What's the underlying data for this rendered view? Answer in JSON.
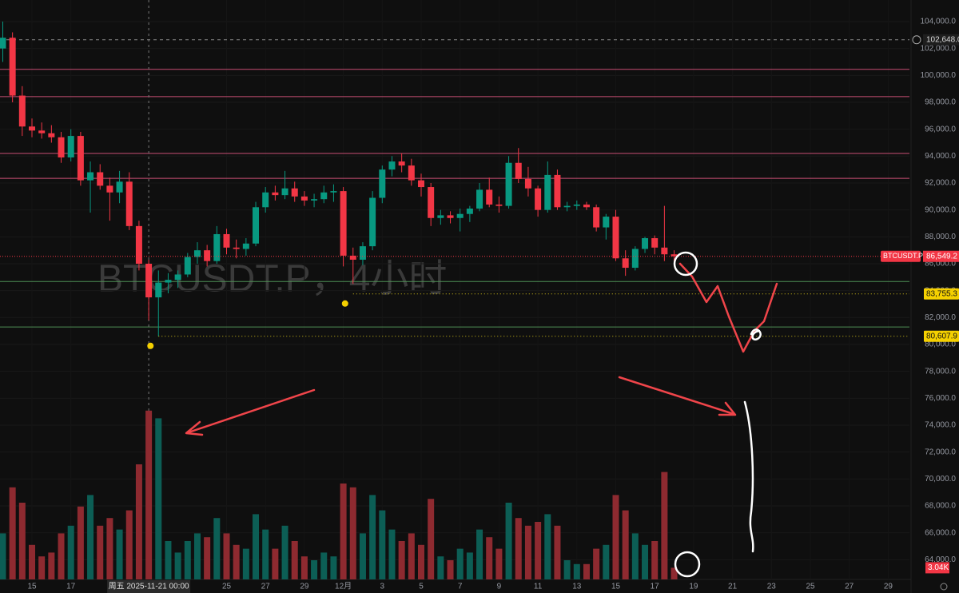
{
  "chart_data": {
    "type": "candlestick",
    "watermark": "BTCUSDT.P，4小时",
    "up_color": "#089981",
    "down_color": "#f23645",
    "up_volume_color": "#0c5e55",
    "down_volume_color": "#8e2a30",
    "grid": true,
    "ylim": [
      62534,
      105604
    ],
    "vlim": [
      0,
      50
    ],
    "yticks": [
      {
        "value": 64000,
        "label": "64,000.0"
      },
      {
        "value": 66000,
        "label": "66,000.0"
      },
      {
        "value": 68000,
        "label": "68,000.0"
      },
      {
        "value": 70000,
        "label": "70,000.0"
      },
      {
        "value": 72000,
        "label": "72,000.0"
      },
      {
        "value": 74000,
        "label": "74,000.0"
      },
      {
        "value": 76000,
        "label": "76,000.0"
      },
      {
        "value": 78000,
        "label": "78,000.0"
      },
      {
        "value": 80000,
        "label": "80,000.0"
      },
      {
        "value": 82000,
        "label": "82,000.0"
      },
      {
        "value": 84000,
        "label": "84,000.0"
      },
      {
        "value": 86000,
        "label": "86,000.0"
      },
      {
        "value": 88000,
        "label": "88,000.0"
      },
      {
        "value": 90000,
        "label": "90,000.0"
      },
      {
        "value": 92000,
        "label": "92,000.0"
      },
      {
        "value": 94000,
        "label": "94,000.0"
      },
      {
        "value": 96000,
        "label": "96,000.0"
      },
      {
        "value": 98000,
        "label": "98,000.0"
      },
      {
        "value": 100000,
        "label": "100,000.0"
      },
      {
        "value": 102000,
        "label": "102,000.0"
      },
      {
        "value": 104000,
        "label": "104,000.0"
      }
    ],
    "xticks": [
      {
        "value": "2025-11-15",
        "label": "15"
      },
      {
        "value": "2025-11-17",
        "label": "17"
      },
      {
        "value": "2025-11-25",
        "label": "25"
      },
      {
        "value": "2025-11-27",
        "label": "27"
      },
      {
        "value": "2025-11-29",
        "label": "29"
      },
      {
        "value": "2025-12-01",
        "label": "12月"
      },
      {
        "value": "2025-12-03",
        "label": "3"
      },
      {
        "value": "2025-12-05",
        "label": "5"
      },
      {
        "value": "2025-12-07",
        "label": "7"
      },
      {
        "value": "2025-12-09",
        "label": "9"
      },
      {
        "value": "2025-12-11",
        "label": "11"
      },
      {
        "value": "2025-12-13",
        "label": "13"
      },
      {
        "value": "2025-12-15",
        "label": "15"
      },
      {
        "value": "2025-12-17",
        "label": "17"
      },
      {
        "value": "2025-12-19",
        "label": "19"
      },
      {
        "value": "2025-12-21",
        "label": "21"
      },
      {
        "value": "2025-12-23",
        "label": "23"
      },
      {
        "value": "2025-12-25",
        "label": "25"
      },
      {
        "value": "2025-12-27",
        "label": "27"
      },
      {
        "value": "2025-12-29",
        "label": "29"
      }
    ],
    "crosshair": {
      "x": "2025-11-21 00:00",
      "label": "周五 2025-11-21 00:00"
    },
    "levels": [
      {
        "value": 100450,
        "color": "#c94f75"
      },
      {
        "value": 98420,
        "color": "#c94f75"
      },
      {
        "value": 94200,
        "color": "#c94f75"
      },
      {
        "value": 92350,
        "color": "#c94f75"
      },
      {
        "value": 84680,
        "color": "#4f8f55"
      },
      {
        "value": 81300,
        "color": "#4f8f55"
      }
    ],
    "marks": [
      {
        "value": 83755.3,
        "label": "83,755.3",
        "from": "2025-12-01 12:00"
      },
      {
        "value": 80607.9,
        "label": "80,607.9",
        "from": "2025-11-21 12:00"
      }
    ],
    "high_line": {
      "value": 102648,
      "label": "102,648.0"
    },
    "last_price": {
      "name": "BTCUSDT.P",
      "value": 86549.2,
      "label": "86,549.2"
    },
    "last_volume": {
      "value": 3.04,
      "label": "3.04K"
    },
    "candles": [
      {
        "x": "2025-11-13 12:00",
        "o": 102000,
        "h": 104000,
        "l": 101000,
        "c": 102800,
        "v": 12
      },
      {
        "x": "2025-11-14 00:00",
        "o": 102800,
        "h": 103200,
        "l": 98000,
        "c": 98500,
        "v": 24
      },
      {
        "x": "2025-11-14 12:00",
        "o": 98500,
        "h": 99200,
        "l": 95500,
        "c": 96200,
        "v": 20
      },
      {
        "x": "2025-11-15 00:00",
        "o": 96200,
        "h": 96800,
        "l": 95400,
        "c": 95900,
        "v": 9
      },
      {
        "x": "2025-11-15 12:00",
        "o": 95900,
        "h": 96500,
        "l": 95300,
        "c": 95700,
        "v": 6
      },
      {
        "x": "2025-11-16 00:00",
        "o": 95700,
        "h": 96300,
        "l": 95000,
        "c": 95400,
        "v": 7
      },
      {
        "x": "2025-11-16 12:00",
        "o": 95400,
        "h": 95800,
        "l": 93500,
        "c": 93900,
        "v": 12
      },
      {
        "x": "2025-11-17 00:00",
        "o": 93900,
        "h": 96000,
        "l": 93600,
        "c": 95500,
        "v": 14
      },
      {
        "x": "2025-11-17 12:00",
        "o": 95500,
        "h": 95800,
        "l": 91800,
        "c": 92200,
        "v": 19
      },
      {
        "x": "2025-11-18 00:00",
        "o": 92200,
        "h": 93600,
        "l": 89800,
        "c": 92800,
        "v": 22
      },
      {
        "x": "2025-11-18 12:00",
        "o": 92800,
        "h": 93400,
        "l": 91500,
        "c": 91800,
        "v": 14
      },
      {
        "x": "2025-11-19 00:00",
        "o": 91800,
        "h": 92400,
        "l": 89200,
        "c": 91300,
        "v": 16
      },
      {
        "x": "2025-11-19 12:00",
        "o": 91300,
        "h": 92900,
        "l": 90500,
        "c": 92100,
        "v": 13
      },
      {
        "x": "2025-11-20 00:00",
        "o": 92100,
        "h": 92800,
        "l": 88500,
        "c": 88800,
        "v": 18
      },
      {
        "x": "2025-11-20 12:00",
        "o": 88800,
        "h": 89200,
        "l": 85500,
        "c": 86000,
        "v": 30
      },
      {
        "x": "2025-11-21 00:00",
        "o": 86000,
        "h": 86300,
        "l": 81800,
        "c": 83500,
        "v": 44
      },
      {
        "x": "2025-11-21 12:00",
        "o": 83500,
        "h": 85500,
        "l": 80600,
        "c": 84600,
        "v": 42
      },
      {
        "x": "2025-11-22 00:00",
        "o": 84600,
        "h": 85300,
        "l": 83800,
        "c": 84800,
        "v": 10
      },
      {
        "x": "2025-11-22 12:00",
        "o": 84800,
        "h": 85500,
        "l": 84200,
        "c": 85200,
        "v": 7
      },
      {
        "x": "2025-11-23 00:00",
        "o": 85200,
        "h": 86800,
        "l": 85000,
        "c": 86500,
        "v": 10
      },
      {
        "x": "2025-11-23 12:00",
        "o": 86500,
        "h": 87600,
        "l": 86000,
        "c": 87000,
        "v": 12
      },
      {
        "x": "2025-11-24 00:00",
        "o": 87000,
        "h": 87400,
        "l": 85800,
        "c": 86200,
        "v": 11
      },
      {
        "x": "2025-11-24 12:00",
        "o": 86200,
        "h": 88800,
        "l": 86000,
        "c": 88200,
        "v": 16
      },
      {
        "x": "2025-11-25 00:00",
        "o": 88200,
        "h": 88600,
        "l": 86700,
        "c": 87200,
        "v": 12
      },
      {
        "x": "2025-11-25 12:00",
        "o": 87200,
        "h": 87800,
        "l": 86400,
        "c": 87100,
        "v": 9
      },
      {
        "x": "2025-11-26 00:00",
        "o": 87100,
        "h": 87900,
        "l": 86600,
        "c": 87500,
        "v": 8
      },
      {
        "x": "2025-11-26 12:00",
        "o": 87500,
        "h": 90600,
        "l": 87300,
        "c": 90200,
        "v": 17
      },
      {
        "x": "2025-11-27 00:00",
        "o": 90200,
        "h": 91700,
        "l": 89800,
        "c": 91300,
        "v": 13
      },
      {
        "x": "2025-11-27 12:00",
        "o": 91300,
        "h": 91800,
        "l": 90700,
        "c": 91100,
        "v": 8
      },
      {
        "x": "2025-11-28 00:00",
        "o": 91100,
        "h": 92900,
        "l": 90800,
        "c": 91600,
        "v": 14
      },
      {
        "x": "2025-11-28 12:00",
        "o": 91600,
        "h": 92100,
        "l": 90600,
        "c": 91000,
        "v": 10
      },
      {
        "x": "2025-11-29 00:00",
        "o": 91000,
        "h": 91400,
        "l": 90300,
        "c": 90700,
        "v": 6
      },
      {
        "x": "2025-11-29 12:00",
        "o": 90700,
        "h": 91200,
        "l": 90200,
        "c": 90800,
        "v": 5
      },
      {
        "x": "2025-11-30 00:00",
        "o": 90800,
        "h": 91800,
        "l": 90500,
        "c": 91300,
        "v": 7
      },
      {
        "x": "2025-11-30 12:00",
        "o": 91300,
        "h": 91900,
        "l": 90600,
        "c": 91400,
        "v": 6
      },
      {
        "x": "2025-12-01 00:00",
        "o": 91400,
        "h": 91700,
        "l": 85800,
        "c": 86600,
        "v": 25
      },
      {
        "x": "2025-12-01 12:00",
        "o": 86600,
        "h": 87200,
        "l": 84500,
        "c": 86300,
        "v": 24
      },
      {
        "x": "2025-12-02 00:00",
        "o": 86300,
        "h": 87600,
        "l": 85900,
        "c": 87300,
        "v": 12
      },
      {
        "x": "2025-12-02 12:00",
        "o": 87300,
        "h": 91400,
        "l": 87000,
        "c": 90900,
        "v": 22
      },
      {
        "x": "2025-12-03 00:00",
        "o": 90900,
        "h": 93300,
        "l": 90500,
        "c": 93000,
        "v": 18
      },
      {
        "x": "2025-12-03 12:00",
        "o": 93000,
        "h": 94000,
        "l": 92500,
        "c": 93600,
        "v": 13
      },
      {
        "x": "2025-12-04 00:00",
        "o": 93600,
        "h": 94200,
        "l": 92800,
        "c": 93300,
        "v": 10
      },
      {
        "x": "2025-12-04 12:00",
        "o": 93300,
        "h": 93800,
        "l": 91800,
        "c": 92200,
        "v": 12
      },
      {
        "x": "2025-12-05 00:00",
        "o": 92200,
        "h": 92700,
        "l": 91000,
        "c": 91700,
        "v": 9
      },
      {
        "x": "2025-12-05 12:00",
        "o": 91700,
        "h": 92000,
        "l": 88800,
        "c": 89400,
        "v": 21
      },
      {
        "x": "2025-12-06 00:00",
        "o": 89400,
        "h": 90000,
        "l": 88900,
        "c": 89600,
        "v": 6
      },
      {
        "x": "2025-12-06 12:00",
        "o": 89600,
        "h": 89900,
        "l": 89000,
        "c": 89400,
        "v": 5
      },
      {
        "x": "2025-12-07 00:00",
        "o": 89400,
        "h": 90100,
        "l": 88400,
        "c": 89700,
        "v": 8
      },
      {
        "x": "2025-12-07 12:00",
        "o": 89700,
        "h": 90300,
        "l": 89100,
        "c": 90100,
        "v": 7
      },
      {
        "x": "2025-12-08 00:00",
        "o": 90100,
        "h": 92000,
        "l": 89900,
        "c": 91500,
        "v": 13
      },
      {
        "x": "2025-12-08 12:00",
        "o": 91500,
        "h": 92400,
        "l": 90200,
        "c": 90400,
        "v": 11
      },
      {
        "x": "2025-12-09 00:00",
        "o": 90400,
        "h": 91000,
        "l": 89800,
        "c": 90300,
        "v": 8
      },
      {
        "x": "2025-12-09 12:00",
        "o": 90300,
        "h": 94000,
        "l": 90100,
        "c": 93500,
        "v": 20
      },
      {
        "x": "2025-12-10 00:00",
        "o": 93500,
        "h": 94600,
        "l": 92000,
        "c": 92300,
        "v": 16
      },
      {
        "x": "2025-12-10 12:00",
        "o": 92300,
        "h": 93200,
        "l": 91000,
        "c": 91600,
        "v": 14
      },
      {
        "x": "2025-12-11 00:00",
        "o": 91600,
        "h": 91800,
        "l": 89500,
        "c": 90000,
        "v": 15
      },
      {
        "x": "2025-12-11 12:00",
        "o": 90000,
        "h": 93600,
        "l": 89800,
        "c": 92600,
        "v": 17
      },
      {
        "x": "2025-12-12 00:00",
        "o": 92600,
        "h": 93000,
        "l": 90000,
        "c": 90200,
        "v": 14
      },
      {
        "x": "2025-12-12 12:00",
        "o": 90200,
        "h": 90600,
        "l": 89900,
        "c": 90300,
        "v": 5
      },
      {
        "x": "2025-12-13 00:00",
        "o": 90300,
        "h": 90700,
        "l": 90000,
        "c": 90400,
        "v": 4
      },
      {
        "x": "2025-12-13 12:00",
        "o": 90400,
        "h": 90600,
        "l": 90000,
        "c": 90200,
        "v": 4
      },
      {
        "x": "2025-12-14 00:00",
        "o": 90200,
        "h": 90400,
        "l": 88400,
        "c": 88700,
        "v": 8
      },
      {
        "x": "2025-12-14 12:00",
        "o": 88700,
        "h": 89700,
        "l": 87800,
        "c": 89500,
        "v": 9
      },
      {
        "x": "2025-12-15 00:00",
        "o": 89500,
        "h": 90000,
        "l": 86200,
        "c": 86400,
        "v": 22
      },
      {
        "x": "2025-12-15 12:00",
        "o": 86400,
        "h": 87000,
        "l": 85100,
        "c": 85700,
        "v": 18
      },
      {
        "x": "2025-12-16 00:00",
        "o": 85700,
        "h": 87300,
        "l": 85500,
        "c": 87100,
        "v": 12
      },
      {
        "x": "2025-12-16 12:00",
        "o": 87100,
        "h": 88000,
        "l": 86800,
        "c": 87900,
        "v": 9
      },
      {
        "x": "2025-12-17 00:00",
        "o": 87900,
        "h": 88100,
        "l": 86700,
        "c": 87200,
        "v": 10
      },
      {
        "x": "2025-12-17 12:00",
        "o": 87200,
        "h": 90300,
        "l": 86200,
        "c": 86700,
        "v": 28
      },
      {
        "x": "2025-12-18 00:00",
        "o": 86700,
        "h": 87000,
        "l": 86000,
        "c": 86549.2,
        "v": 3.04
      }
    ]
  }
}
